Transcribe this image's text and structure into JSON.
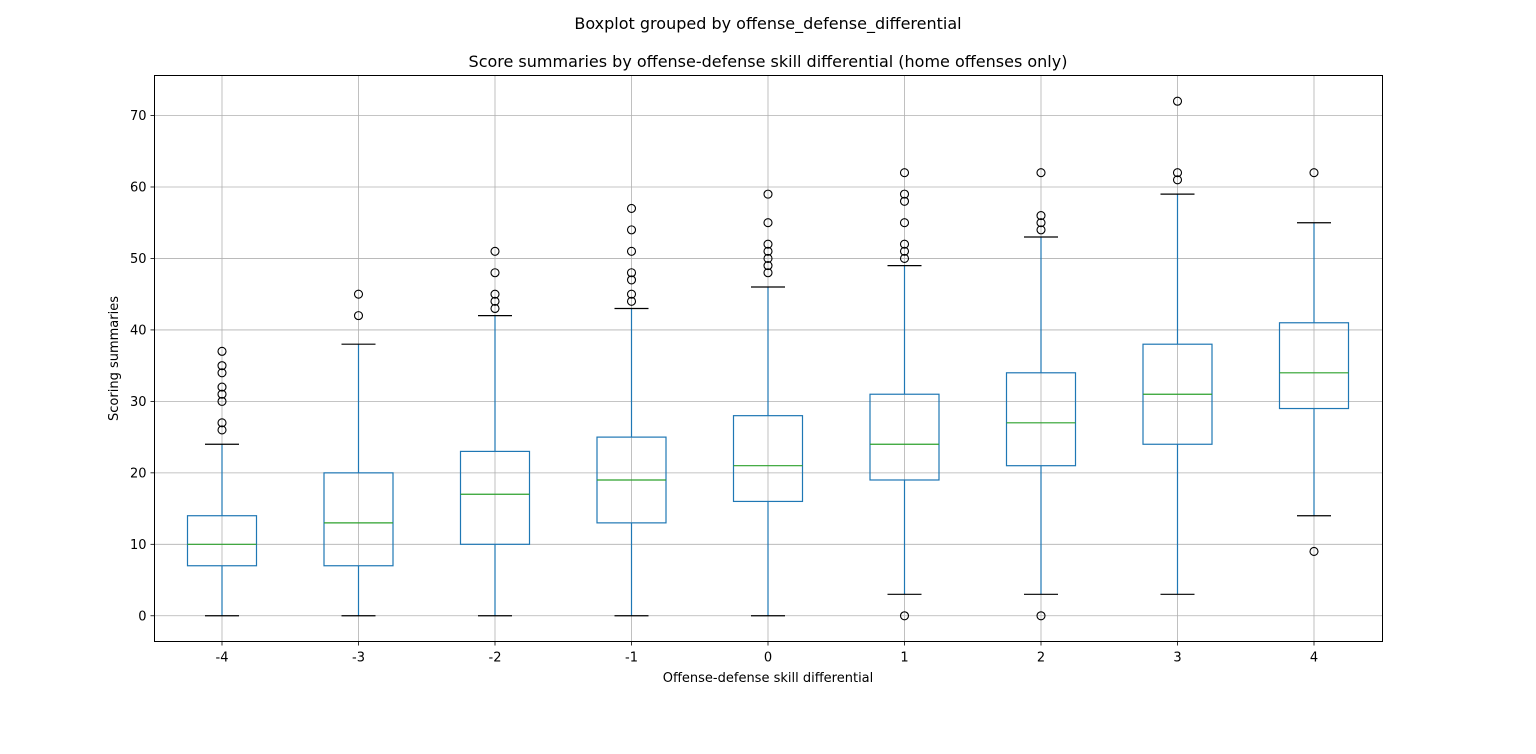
{
  "chart_data": {
    "type": "boxplot",
    "suptitle": "Boxplot grouped by offense_defense_differential",
    "title": "Score summaries by offense-defense skill differential (home offenses only)",
    "xlabel": "Offense-defense skill differential",
    "ylabel": "Scoring summaries",
    "ylim": [
      -3.6,
      75.6
    ],
    "yticks": [
      0,
      10,
      20,
      30,
      40,
      50,
      60,
      70
    ],
    "grid": true,
    "colors": {
      "box": "#1f77b4",
      "median": "#2ca02c",
      "cap": "#000000",
      "flier": "#000000",
      "grid": "#b0b0b0"
    },
    "categories": [
      "-4",
      "-3",
      "-2",
      "-1",
      "0",
      "1",
      "2",
      "3",
      "4"
    ],
    "boxes": [
      {
        "category": "-4",
        "whisker_low": 0,
        "q1": 7,
        "median": 10,
        "q3": 14,
        "whisker_high": 24,
        "fliers": [
          26,
          27,
          30,
          31,
          32,
          34,
          35,
          37
        ]
      },
      {
        "category": "-3",
        "whisker_low": 0,
        "q1": 7,
        "median": 13,
        "q3": 20,
        "whisker_high": 38,
        "fliers": [
          42,
          45
        ]
      },
      {
        "category": "-2",
        "whisker_low": 0,
        "q1": 10,
        "median": 17,
        "q3": 23,
        "whisker_high": 42,
        "fliers": [
          43,
          44,
          45,
          48,
          51
        ]
      },
      {
        "category": "-1",
        "whisker_low": 0,
        "q1": 13,
        "median": 19,
        "q3": 25,
        "whisker_high": 43,
        "fliers": [
          44,
          45,
          47,
          48,
          51,
          54,
          57
        ]
      },
      {
        "category": "0",
        "whisker_low": 0,
        "q1": 16,
        "median": 21,
        "q3": 28,
        "whisker_high": 46,
        "fliers": [
          48,
          49,
          50,
          51,
          52,
          55,
          59
        ]
      },
      {
        "category": "1",
        "whisker_low": 3,
        "q1": 19,
        "median": 24,
        "q3": 31,
        "whisker_high": 49,
        "fliers": [
          0,
          50,
          51,
          52,
          55,
          58,
          59,
          62
        ]
      },
      {
        "category": "2",
        "whisker_low": 3,
        "q1": 21,
        "median": 27,
        "q3": 34,
        "whisker_high": 53,
        "fliers": [
          0,
          54,
          55,
          56,
          62
        ]
      },
      {
        "category": "3",
        "whisker_low": 3,
        "q1": 24,
        "median": 31,
        "q3": 38,
        "whisker_high": 59,
        "fliers": [
          61,
          62,
          72
        ]
      },
      {
        "category": "4",
        "whisker_low": 14,
        "q1": 29,
        "median": 34,
        "q3": 41,
        "whisker_high": 55,
        "fliers": [
          9,
          62
        ]
      }
    ]
  }
}
